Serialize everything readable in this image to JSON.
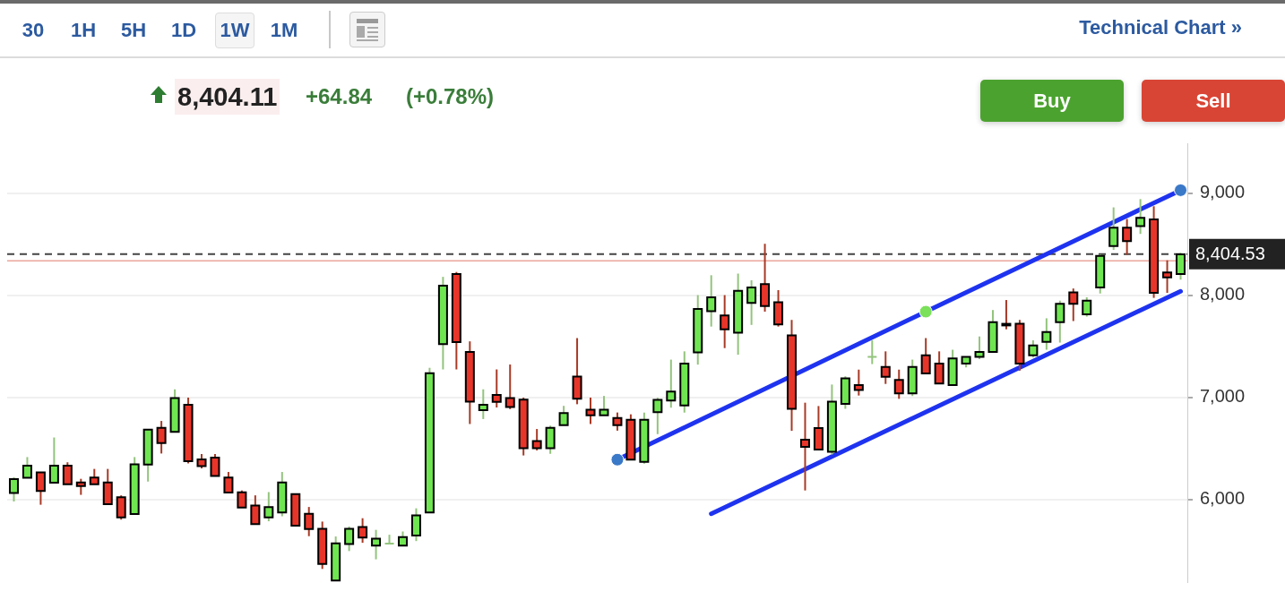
{
  "chart_data": {
    "type": "candlestick",
    "categories": [
      null,
      null,
      null,
      null,
      null,
      null,
      null,
      null,
      null,
      null,
      null,
      null,
      null,
      null,
      null,
      null,
      null,
      null,
      null,
      null,
      null,
      null,
      null,
      null,
      null,
      null,
      null,
      null,
      null,
      null,
      null,
      null,
      null,
      null,
      null,
      null,
      null,
      null,
      null,
      null,
      null,
      null,
      null,
      null,
      null,
      null,
      null,
      null,
      null,
      null,
      null,
      null,
      null,
      null,
      null,
      null,
      null,
      null,
      null,
      null,
      null,
      null,
      null,
      null,
      null,
      null,
      null,
      null,
      null,
      null,
      null,
      null,
      null,
      null,
      null,
      null,
      null,
      null,
      null,
      null,
      null,
      null,
      null,
      null,
      null,
      null,
      null,
      null
    ],
    "ohlc": [
      [
        6064,
        6218,
        5980,
        6199
      ],
      [
        6213,
        6415,
        6213,
        6331
      ],
      [
        6264,
        6264,
        5948,
        6083
      ],
      [
        6164,
        6607,
        6164,
        6331
      ],
      [
        6331,
        6364,
        6148,
        6148
      ],
      [
        6167,
        6202,
        6045,
        6132
      ],
      [
        6215,
        6299,
        6148,
        6148
      ],
      [
        6167,
        6299,
        5953,
        5953
      ],
      [
        6021,
        6040,
        5802,
        5824
      ],
      [
        5856,
        6415,
        5856,
        6345
      ],
      [
        6342,
        6685,
        6175,
        6685
      ],
      [
        6701,
        6769,
        6450,
        6553
      ],
      [
        6663,
        7079,
        6663,
        6993
      ],
      [
        6928,
        6998,
        6353,
        6375
      ],
      [
        6393,
        6445,
        6304,
        6326
      ],
      [
        6410,
        6445,
        6229,
        6229
      ],
      [
        6215,
        6269,
        6067,
        6067
      ],
      [
        6069,
        6088,
        5921,
        5921
      ],
      [
        5940,
        6040,
        5759,
        5759
      ],
      [
        5824,
        6072,
        5786,
        5924
      ],
      [
        5872,
        6269,
        5835,
        6167
      ],
      [
        6053,
        6053,
        5743,
        5743
      ],
      [
        5859,
        5926,
        5640,
        5710
      ],
      [
        5713,
        5783,
        5319,
        5367
      ],
      [
        5205,
        5637,
        5205,
        5570
      ],
      [
        5562,
        5735,
        5494,
        5713
      ],
      [
        5729,
        5816,
        5575,
        5627
      ],
      [
        5548,
        5702,
        5413,
        5616
      ],
      [
        5567,
        5654,
        5567,
        5567
      ],
      [
        5548,
        5686,
        5548,
        5632
      ],
      [
        5646,
        5913,
        5592,
        5843
      ],
      [
        5872,
        7290,
        5872,
        7236
      ],
      [
        7522,
        8181,
        7274,
        8094
      ],
      [
        8208,
        8229,
        7274,
        7541
      ],
      [
        7446,
        7549,
        6739,
        6958
      ],
      [
        6874,
        7079,
        6788,
        6928
      ],
      [
        7025,
        7274,
        6901,
        6955
      ],
      [
        6993,
        7322,
        6885,
        6906
      ],
      [
        6977,
        6998,
        6431,
        6501
      ],
      [
        6572,
        6690,
        6480,
        6501
      ],
      [
        6501,
        6723,
        6447,
        6701
      ],
      [
        6728,
        6917,
        6728,
        6847
      ],
      [
        7203,
        7581,
        6933,
        6987
      ],
      [
        6879,
        6998,
        6739,
        6825
      ],
      [
        6825,
        7014,
        6825,
        6879
      ],
      [
        6798,
        6852,
        6674,
        6728
      ],
      [
        6780,
        6834,
        6391,
        6391
      ],
      [
        6369,
        6851,
        6350,
        6780
      ],
      [
        6856,
        6997,
        6640,
        6975
      ],
      [
        6969,
        7370,
        6899,
        7056
      ],
      [
        6921,
        7451,
        6851,
        7332
      ],
      [
        7440,
        8002,
        7321,
        7867
      ],
      [
        7845,
        8197,
        7694,
        7980
      ],
      [
        7802,
        8002,
        7483,
        7667
      ],
      [
        7634,
        8213,
        7418,
        8045
      ],
      [
        7926,
        8148,
        7710,
        8078
      ],
      [
        8110,
        8505,
        7840,
        7894
      ],
      [
        7932,
        8051,
        7694,
        7716
      ],
      [
        7607,
        7759,
        6672,
        6888
      ],
      [
        6586,
        6948,
        6088,
        6515
      ],
      [
        6699,
        6915,
        6488,
        6488
      ],
      [
        6467,
        7126,
        6440,
        6959
      ],
      [
        6937,
        7207,
        6888,
        7186
      ],
      [
        7121,
        7272,
        7018,
        7072
      ],
      [
        7397,
        7559,
        7326,
        7397
      ],
      [
        7299,
        7451,
        7132,
        7202
      ],
      [
        7170,
        7272,
        6986,
        7040
      ],
      [
        7040,
        7370,
        7013,
        7299
      ],
      [
        7413,
        7581,
        7235,
        7235
      ],
      [
        7332,
        7451,
        7137,
        7137
      ],
      [
        7121,
        7467,
        7121,
        7381
      ],
      [
        7332,
        7397,
        7294,
        7397
      ],
      [
        7397,
        7597,
        7375,
        7445
      ],
      [
        7445,
        7856,
        7445,
        7737
      ],
      [
        7721,
        7954,
        7667,
        7705
      ],
      [
        7721,
        7759,
        7262,
        7332
      ],
      [
        7413,
        7559,
        7391,
        7510
      ],
      [
        7543,
        7775,
        7467,
        7640
      ],
      [
        7737,
        7948,
        7537,
        7916
      ],
      [
        8029,
        8067,
        7748,
        7916
      ],
      [
        7813,
        7981,
        7791,
        7948
      ],
      [
        8078,
        8402,
        8018,
        8386
      ],
      [
        8483,
        8862,
        8445,
        8662
      ],
      [
        8662,
        8748,
        8397,
        8532
      ],
      [
        8678,
        8943,
        8602,
        8759
      ],
      [
        8743,
        8873,
        7975,
        8024
      ],
      [
        8224,
        8343,
        8024,
        8175
      ],
      [
        8208,
        8418,
        8154,
        8402
      ]
    ],
    "series": [
      {
        "type": "line",
        "color": "#1e33f0",
        "marker": "circle",
        "values": [
          null,
          null,
          null,
          null,
          null,
          null,
          null,
          null,
          null,
          null,
          null,
          null,
          null,
          null,
          null,
          null,
          null,
          null,
          null,
          null,
          null,
          null,
          null,
          null,
          null,
          null,
          null,
          null,
          null,
          null,
          null,
          null,
          null,
          null,
          null,
          null,
          null,
          null,
          null,
          null,
          null,
          null,
          null,
          null,
          null,
          6390,
          null,
          null,
          null,
          null,
          null,
          null,
          null,
          null,
          null,
          null,
          null,
          null,
          null,
          null,
          null,
          null,
          null,
          null,
          null,
          null,
          null,
          null,
          7840,
          null,
          null,
          null,
          null,
          null,
          null,
          null,
          null,
          null,
          null,
          null,
          null,
          null,
          null,
          null,
          null,
          null,
          null,
          9030
        ],
        "colors": [
          null,
          null,
          null,
          null,
          null,
          null,
          null,
          null,
          null,
          null,
          null,
          null,
          null,
          null,
          null,
          null,
          null,
          null,
          null,
          null,
          null,
          null,
          null,
          null,
          null,
          null,
          null,
          null,
          null,
          null,
          null,
          null,
          null,
          null,
          null,
          null,
          null,
          null,
          null,
          null,
          null,
          null,
          null,
          null,
          null,
          "#3a78c8",
          null,
          null,
          null,
          null,
          null,
          null,
          null,
          null,
          null,
          null,
          null,
          null,
          null,
          null,
          null,
          null,
          null,
          null,
          null,
          null,
          null,
          null,
          "#7be05a",
          null,
          null,
          null,
          null,
          null,
          null,
          null,
          null,
          null,
          null,
          null,
          null,
          null,
          null,
          null,
          null,
          null,
          null,
          "#3a78c8"
        ]
      },
      {
        "type": "line",
        "color": "#1e33f0",
        "values": [
          null,
          null,
          null,
          null,
          null,
          null,
          null,
          null,
          null,
          null,
          null,
          null,
          null,
          null,
          null,
          null,
          null,
          null,
          null,
          null,
          null,
          null,
          null,
          null,
          null,
          null,
          null,
          null,
          null,
          null,
          null,
          null,
          null,
          null,
          null,
          null,
          null,
          null,
          null,
          null,
          null,
          null,
          null,
          null,
          null,
          null,
          null,
          null,
          null,
          null,
          null,
          null,
          5860,
          null,
          null,
          null,
          null,
          null,
          null,
          null,
          null,
          null,
          null,
          null,
          null,
          null,
          null,
          null,
          null,
          null,
          null,
          null,
          null,
          null,
          null,
          null,
          null,
          null,
          null,
          null,
          null,
          null,
          null,
          null,
          null,
          null,
          null,
          8040
        ]
      }
    ],
    "ylim": [
      5190,
      9490
    ],
    "yticks": [
      {
        "value": 6000,
        "label": "6,000"
      },
      {
        "value": 7000,
        "label": "7,000"
      },
      {
        "value": 8000,
        "label": "8,000"
      },
      {
        "value": 9000,
        "label": "9,000"
      }
    ],
    "tick_labels": "y",
    "grid": "y",
    "ref_lines": [
      {
        "axis": "y",
        "value": 8404.53,
        "label": "8,404.53",
        "color": "#444444",
        "line_style": "dashed"
      },
      {
        "axis": "y",
        "value": 8339,
        "color": "#e07a6a"
      }
    ],
    "annotations": [
      "30",
      "1H",
      "5H",
      "1D",
      "1W",
      "1M",
      "Technical Chart »",
      "8,404.11",
      "+64.84",
      "(+0.78%)",
      "Buy",
      "Sell"
    ]
  }
}
